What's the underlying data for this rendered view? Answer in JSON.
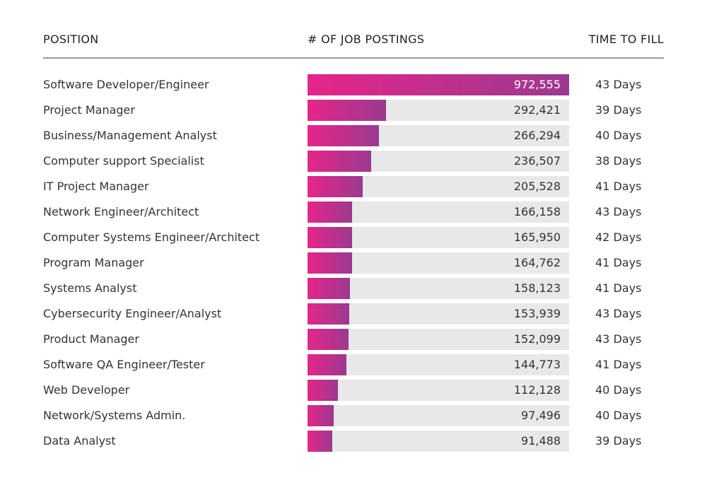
{
  "chart_data": {
    "type": "bar",
    "orientation": "horizontal",
    "headers": {
      "position": "POSITION",
      "postings": "# OF JOB POSTINGS",
      "time_to_fill": "TIME TO FILL"
    },
    "categories": [
      "Software Developer/Engineer",
      "Project Manager",
      "Business/Management Analyst",
      "Computer support Specialist",
      "IT Project Manager",
      "Network Engineer/Architect",
      "Computer Systems Engineer/Architect",
      "Program Manager",
      "Systems Analyst",
      "Cybersecurity Engineer/Analyst",
      "Product Manager",
      "Software QA Engineer/Tester",
      "Web Developer",
      "Network/Systems Admin.",
      "Data Analyst"
    ],
    "values": [
      972555,
      292421,
      266294,
      236507,
      205528,
      166158,
      165950,
      164762,
      158123,
      153939,
      152099,
      144773,
      112128,
      97496,
      91488
    ],
    "value_labels": [
      "972,555",
      "292,421",
      "266,294",
      "236,507",
      "205,528",
      "166,158",
      "165,950",
      "164,762",
      "158,123",
      "153,939",
      "152,099",
      "144,773",
      "112,128",
      "97,496",
      "91,488"
    ],
    "time_to_fill": [
      "43 Days",
      "39 Days",
      "40 Days",
      "38 Days",
      "41 Days",
      "43 Days",
      "42 Days",
      "41 Days",
      "41 Days",
      "43 Days",
      "43 Days",
      "41 Days",
      "40 Days",
      "40 Days",
      "39 Days"
    ],
    "xlim": [
      0,
      972555
    ],
    "grid": false,
    "colors": {
      "gradient_start": "#e6258a",
      "gradient_end": "#9b3a8f",
      "track": "#e8e8e8"
    }
  }
}
